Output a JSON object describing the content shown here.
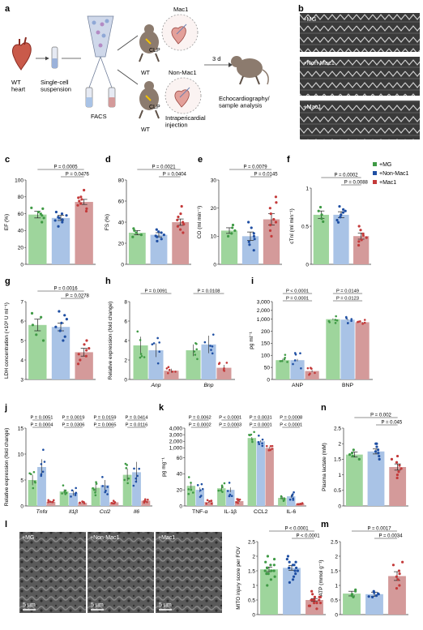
{
  "colors": {
    "mg": "#9ed59c",
    "mg_dot": "#3f9a45",
    "non": "#a9c3e6",
    "non_dot": "#1f4fa3",
    "mac": "#d49a9a",
    "mac_dot": "#c43a3a"
  },
  "panel_a": {
    "letter": "a",
    "wt_heart": "WT\nheart",
    "suspension": "Single-cell\nsuspension",
    "facs": "FACS",
    "mac1": "Mac1",
    "non_mac1": "Non-Mac1",
    "clp_top": "CLP",
    "wt_top": "WT",
    "clp_bottom": "CLP",
    "wt_bottom": "WT",
    "injection": "Intrapericardial\ninjection",
    "days": "3 d",
    "analysis": "Echocardiography/\nsample analysis"
  },
  "panel_b": {
    "letter": "b",
    "labels": [
      "+MG",
      "+Non-Mac1",
      "+Mac1"
    ]
  },
  "legend": [
    "+MG",
    "+Non-Mac1",
    "+Mac1"
  ],
  "chart_data": [
    {
      "id": "c",
      "type": "bar",
      "ylabel": "EF (%)",
      "ylim": [
        0,
        100
      ],
      "yticks": [
        0,
        20,
        40,
        60,
        80,
        100
      ],
      "categories": [
        "+MG",
        "+Non-Mac1",
        "+Mac1"
      ],
      "values": [
        59,
        55,
        74
      ],
      "errors": [
        4,
        3,
        3
      ],
      "points": [
        [
          50,
          55,
          58,
          60,
          62,
          66,
          67
        ],
        [
          45,
          50,
          52,
          53,
          55,
          56,
          58,
          60,
          62
        ],
        [
          63,
          66,
          70,
          72,
          75,
          77,
          79,
          80,
          88
        ]
      ],
      "pvals": [
        {
          "text": "P = 0.0005",
          "from": 0,
          "to": 2
        },
        {
          "text": "P = 0.0476",
          "from": 1,
          "to": 2
        }
      ]
    },
    {
      "id": "d",
      "type": "bar",
      "ylabel": "FS (%)",
      "ylim": [
        0,
        80
      ],
      "yticks": [
        0,
        20,
        40,
        60,
        80
      ],
      "categories": [
        "+MG",
        "+Non-Mac1",
        "+Mac1"
      ],
      "values": [
        30,
        28,
        40
      ],
      "errors": [
        2,
        2,
        3
      ],
      "points": [
        [
          26,
          28,
          30,
          32,
          34
        ],
        [
          22,
          24,
          26,
          27,
          28,
          30,
          31,
          33
        ],
        [
          30,
          33,
          36,
          38,
          40,
          42,
          45,
          48,
          55
        ]
      ],
      "pvals": [
        {
          "text": "P = 0.0021",
          "from": 0,
          "to": 2
        },
        {
          "text": "P = 0.0404",
          "from": 1,
          "to": 2
        }
      ]
    },
    {
      "id": "e",
      "type": "bar",
      "ylabel": "CO (ml min⁻¹)",
      "ylim": [
        0,
        30
      ],
      "yticks": [
        0,
        10,
        20,
        30
      ],
      "categories": [
        "+MG",
        "+Non-Mac1",
        "+Mac1"
      ],
      "values": [
        12,
        10,
        16
      ],
      "errors": [
        1,
        1.5,
        2
      ],
      "points": [
        [
          10,
          11,
          12,
          13,
          14
        ],
        [
          5,
          7,
          8,
          9,
          10,
          11,
          13,
          15
        ],
        [
          10,
          12,
          14,
          15,
          16,
          18,
          20,
          22,
          24
        ]
      ],
      "pvals": [
        {
          "text": "P = 0.0079",
          "from": 0,
          "to": 2
        },
        {
          "text": "P = 0.0145",
          "from": 1,
          "to": 2
        }
      ]
    },
    {
      "id": "f",
      "type": "bar",
      "ylabel": "cTnI (ml min⁻¹)",
      "ylim": [
        0,
        1.0
      ],
      "yticks": [
        0,
        0.5,
        1.0
      ],
      "categories": [
        "+MG",
        "+Non-Mac1",
        "+Mac1"
      ],
      "values": [
        0.65,
        0.65,
        0.37
      ],
      "errors": [
        0.05,
        0.04,
        0.04
      ],
      "points": [
        [
          0.56,
          0.6,
          0.65,
          0.7,
          0.75
        ],
        [
          0.55,
          0.58,
          0.62,
          0.65,
          0.68,
          0.7,
          0.72,
          0.76
        ],
        [
          0.25,
          0.3,
          0.32,
          0.35,
          0.38,
          0.4,
          0.45,
          0.5
        ]
      ],
      "pvals": [
        {
          "text": "P = 0.0002",
          "from": 0,
          "to": 2
        },
        {
          "text": "P = 0.0088",
          "from": 1,
          "to": 2
        }
      ]
    },
    {
      "id": "g",
      "type": "bar",
      "ylabel": "LDH concentration (×10³ U ml⁻¹)",
      "ylim": [
        3,
        7
      ],
      "yticks": [
        3,
        4,
        5,
        6,
        7
      ],
      "categories": [
        "+MG",
        "+Non-Mac1",
        "+Mac1"
      ],
      "values": [
        5.8,
        5.7,
        4.4
      ],
      "errors": [
        0.3,
        0.2,
        0.2
      ],
      "points": [
        [
          5.0,
          5.3,
          5.8,
          6.2,
          6.4
        ],
        [
          5.0,
          5.2,
          5.5,
          5.7,
          5.9,
          6.1,
          6.3,
          6.5
        ],
        [
          3.8,
          4.0,
          4.2,
          4.3,
          4.5,
          4.6,
          4.8,
          5.0
        ]
      ],
      "pvals": [
        {
          "text": "P = 0.0016",
          "from": 0,
          "to": 2
        },
        {
          "text": "P = 0.0278",
          "from": 1,
          "to": 2
        }
      ]
    },
    {
      "id": "h",
      "type": "grouped-bar",
      "ylabel": "Relative expression (fold change)",
      "ylim": [
        0,
        8
      ],
      "yticks": [
        0,
        2,
        4,
        6,
        8
      ],
      "groups": [
        "Anp",
        "Bnp"
      ],
      "values": [
        [
          3.5,
          3.0,
          0.9
        ],
        [
          3.0,
          3.6,
          1.2
        ]
      ],
      "errors": [
        [
          0.9,
          0.7,
          0.2
        ],
        [
          0.6,
          0.9,
          0.3
        ]
      ],
      "pvals": [
        {
          "text": "P = 0.0091",
          "group": 0
        },
        {
          "text": "P = 0.0108",
          "group": 1
        }
      ]
    },
    {
      "id": "i",
      "type": "grouped-bar",
      "ylabel": "pg ml⁻¹",
      "yticks": [
        0,
        50,
        100,
        150,
        200,
        1000,
        2000,
        3000
      ],
      "groups": [
        "ANP",
        "BNP"
      ],
      "values": [
        [
          80,
          80,
          35
        ],
        [
          1000,
          950,
          650
        ]
      ],
      "errors": [
        [
          6,
          5,
          4
        ],
        [
          100,
          90,
          40
        ]
      ],
      "pvals": [
        {
          "text": "P < 0.0001",
          "group": 0,
          "row": 0
        },
        {
          "text": "P = 0.0001",
          "group": 0,
          "row": 1
        },
        {
          "text": "P = 0.0149",
          "group": 1,
          "row": 0
        },
        {
          "text": "P = 0.0123",
          "group": 1,
          "row": 1
        }
      ]
    },
    {
      "id": "j",
      "type": "grouped-bar",
      "ylabel": "Relative expression (fold change)",
      "ylim": [
        0,
        15
      ],
      "yticks": [
        0,
        5,
        10,
        15
      ],
      "groups": [
        "Tnfα",
        "Il1β",
        "Ccl2",
        "Il6"
      ],
      "values": [
        [
          5,
          7.5,
          0.8
        ],
        [
          2.8,
          2.5,
          0.6
        ],
        [
          3.5,
          4.0,
          0.7
        ],
        [
          6.0,
          6.5,
          1.0
        ]
      ],
      "errors": [
        [
          1.0,
          1.5,
          0.2
        ],
        [
          0.4,
          0.5,
          0.1
        ],
        [
          0.8,
          1.0,
          0.2
        ],
        [
          1.2,
          2.0,
          0.3
        ]
      ],
      "pvals": [
        {
          "text": "P = 0.0051",
          "group": 0,
          "row": 0
        },
        {
          "text": "P = 0.0004",
          "group": 0,
          "row": 1
        },
        {
          "text": "P = 0.0019",
          "group": 1,
          "row": 0
        },
        {
          "text": "P = 0.0306",
          "group": 1,
          "row": 1
        },
        {
          "text": "P = 0.0159",
          "group": 2,
          "row": 0
        },
        {
          "text": "P = 0.0065",
          "group": 2,
          "row": 1
        },
        {
          "text": "P = 0.0414",
          "group": 3,
          "row": 0
        },
        {
          "text": "P = 0.0116",
          "group": 3,
          "row": 1
        }
      ]
    },
    {
      "id": "k",
      "type": "grouped-bar",
      "ylabel": "pg mg⁻¹",
      "yticks": [
        0,
        20,
        40,
        60,
        1000,
        2000,
        3000,
        4000
      ],
      "groups": [
        "TNF-α",
        "IL-1β",
        "CCL2",
        "IL-6"
      ],
      "values": [
        [
          25,
          20,
          5
        ],
        [
          22,
          20,
          6
        ],
        [
          2500,
          2000,
          1000
        ],
        [
          10,
          12,
          3
        ]
      ],
      "errors": [
        [
          4,
          3,
          1
        ],
        [
          3,
          3,
          1
        ],
        [
          150,
          150,
          100
        ],
        [
          2,
          2,
          1
        ]
      ],
      "pvals": [
        {
          "text": "P = 0.0062",
          "group": 0,
          "row": 0
        },
        {
          "text": "P = 0.0002",
          "group": 0,
          "row": 1
        },
        {
          "text": "P < 0.0001",
          "group": 1,
          "row": 0
        },
        {
          "text": "P = 0.0003",
          "group": 1,
          "row": 1
        },
        {
          "text": "P = 0.0031",
          "group": 2,
          "row": 0
        },
        {
          "text": "P = 0.0001",
          "group": 2,
          "row": 1
        },
        {
          "text": "P = 0.0008",
          "group": 3,
          "row": 0
        },
        {
          "text": "P < 0.0001",
          "group": 3,
          "row": 1
        }
      ]
    },
    {
      "id": "n",
      "type": "bar",
      "ylabel": "Plasma lactate (mM)",
      "ylim": [
        0,
        2.5
      ],
      "yticks": [
        0,
        0.5,
        1.0,
        1.5,
        2.0,
        2.5
      ],
      "categories": [
        "+MG",
        "+Non-Mac1",
        "+Mac1"
      ],
      "values": [
        1.65,
        1.75,
        1.25
      ],
      "errors": [
        0.08,
        0.08,
        0.1
      ],
      "points": [
        [
          1.5,
          1.6,
          1.65,
          1.7,
          1.8
        ],
        [
          1.5,
          1.6,
          1.7,
          1.75,
          1.8,
          1.9,
          2.0,
          2.0
        ],
        [
          0.9,
          1.0,
          1.1,
          1.2,
          1.3,
          1.4,
          1.5,
          1.6
        ]
      ],
      "pvals": [
        {
          "text": "P = 0.002",
          "from": 0,
          "to": 2
        },
        {
          "text": "P = 0.045",
          "from": 1,
          "to": 2
        }
      ]
    },
    {
      "id": "l",
      "type": "bar",
      "ylabel": "MITO injury score per FOV",
      "ylim": [
        0,
        2.5
      ],
      "yticks": [
        0,
        0.5,
        1.0,
        1.5,
        2.0,
        2.5
      ],
      "categories": [
        "+MG",
        "+Non-Mac1",
        "+Mac1"
      ],
      "values": [
        1.55,
        1.6,
        0.5
      ],
      "errors": [
        0.08,
        0.08,
        0.05
      ],
      "points": [
        [
          1.0,
          1.2,
          1.3,
          1.4,
          1.5,
          1.5,
          1.6,
          1.7,
          1.8,
          1.9,
          2.0,
          1.6,
          1.4,
          1.7,
          1.5
        ],
        [
          1.1,
          1.2,
          1.3,
          1.5,
          1.6,
          1.7,
          1.8,
          1.9,
          2.0,
          1.6,
          1.4,
          1.7,
          1.5,
          1.8,
          1.6
        ],
        [
          0.2,
          0.3,
          0.4,
          0.4,
          0.5,
          0.5,
          0.6,
          0.6,
          0.7,
          0.8,
          0.4,
          0.5,
          0.3,
          0.6,
          0.5
        ]
      ],
      "pvals": [
        {
          "text": "P < 0.0001",
          "from": 0,
          "to": 2
        },
        {
          "text": "P < 0.0001",
          "from": 1,
          "to": 2
        }
      ]
    },
    {
      "id": "m",
      "type": "bar",
      "ylabel": "ATP (mmol g⁻¹)",
      "ylim": [
        0,
        2.5
      ],
      "yticks": [
        0,
        0.5,
        1.0,
        1.5,
        2.0,
        2.5
      ],
      "categories": [
        "+MG",
        "+Non-Mac1",
        "+Mac1"
      ],
      "values": [
        0.72,
        0.7,
        1.32
      ],
      "errors": [
        0.08,
        0.07,
        0.15
      ],
      "points": [
        [
          0.6,
          0.65,
          0.7,
          0.8,
          0.85
        ],
        [
          0.6,
          0.62,
          0.65,
          0.7,
          0.72,
          0.75,
          0.8
        ],
        [
          0.9,
          1.0,
          1.2,
          1.3,
          1.4,
          1.5,
          1.7,
          1.8
        ]
      ],
      "pvals": [
        {
          "text": "P = 0.0017",
          "from": 0,
          "to": 2
        },
        {
          "text": "P = 0.0034",
          "from": 1,
          "to": 2
        }
      ]
    }
  ],
  "panel_letters": {
    "c": "c",
    "d": "d",
    "e": "e",
    "f": "f",
    "g": "g",
    "h": "h",
    "i": "i",
    "j": "j",
    "k": "k",
    "n": "n",
    "l": "l",
    "m": "m"
  },
  "panel_l": {
    "labels": [
      "+MG",
      "+Non-Mac1",
      "+Mac1"
    ],
    "scale": "5 μm"
  }
}
